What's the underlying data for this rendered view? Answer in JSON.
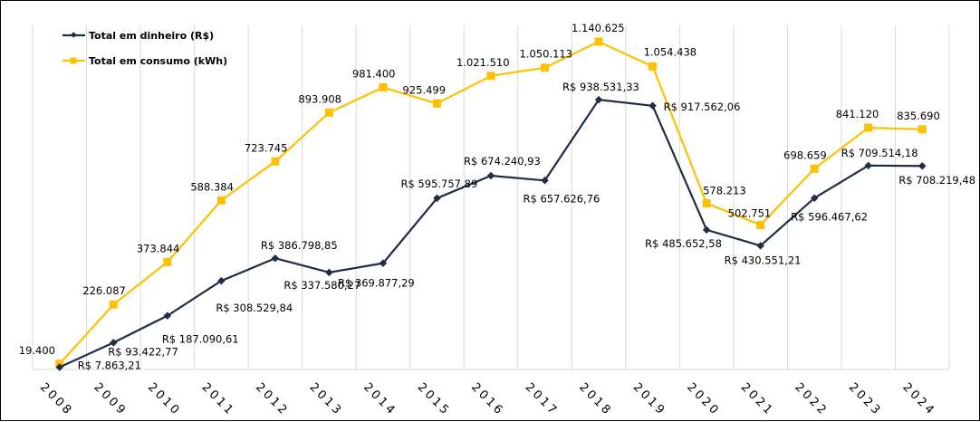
{
  "chart_data": {
    "type": "line",
    "title": "",
    "xlabel": "",
    "ylabel": "",
    "ylim": [
      0,
      1140625
    ],
    "grid": "vertical",
    "legend_position": "top-left",
    "categories": [
      "2008",
      "2009",
      "2010",
      "2011",
      "2012",
      "2013",
      "2014",
      "2015",
      "2016",
      "2017",
      "2018",
      "2019",
      "2020",
      "2021",
      "2022",
      "2023",
      "2024"
    ],
    "series": [
      {
        "name": "Total em dinheiro (R$)",
        "color": "#1f2d45",
        "marker": "diamond",
        "values": [
          7863.21,
          93422.77,
          187090.61,
          308529.84,
          386798.85,
          337580.27,
          369877.29,
          595757.89,
          674240.93,
          657626.76,
          938531.33,
          917562.06,
          485652.58,
          430551.21,
          596467.62,
          709514.18,
          708219.48
        ],
        "labels": [
          "R$ 7.863,21",
          "R$ 93.422,77",
          "R$ 187.090,61",
          "R$ 308.529,84",
          "R$ 386.798,85",
          "R$ 337.580,27",
          "R$ 369.877,29",
          "R$ 595.757,89",
          "R$ 674.240,93",
          "R$ 657.626,76",
          "R$ 938.531,33",
          "R$ 917.562,06",
          "R$ 485.652,58",
          "R$ 430.551,21",
          "R$ 596.467,62",
          "R$ 709.514,18",
          "R$ 708.219,48"
        ]
      },
      {
        "name": "Total em consumo (kWh)",
        "color": "#ffc000",
        "marker": "square",
        "values": [
          19400,
          226087,
          373844,
          588384,
          723745,
          893908,
          981400,
          925499,
          1021510,
          1050113,
          1140625,
          1054438,
          578213,
          502751,
          698659,
          841120,
          835690
        ],
        "labels": [
          "19.400",
          "226.087",
          "373.844",
          "588.384",
          "723.745",
          "893.908",
          "981.400",
          "925.499",
          "1.021.510",
          "1.050.113",
          "1.140.625",
          "1.054.438",
          "578.213",
          "502.751",
          "698.659",
          "841.120",
          "835.690"
        ]
      }
    ]
  }
}
